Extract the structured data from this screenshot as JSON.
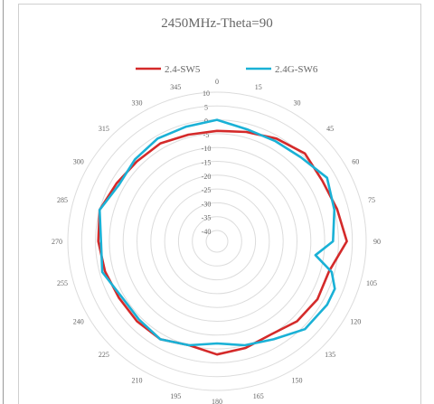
{
  "chart_data": {
    "type": "polar-line",
    "title": "2450MHz-Theta=90",
    "angle_labels": [
      "0",
      "15",
      "30",
      "45",
      "60",
      "75",
      "90",
      "105",
      "120",
      "135",
      "150",
      "165",
      "180",
      "195",
      "210",
      "225",
      "240",
      "255",
      "270",
      "285",
      "300",
      "315",
      "330",
      "345"
    ],
    "radial_range": [
      -40,
      10
    ],
    "radial_labels": [
      "10",
      "5",
      "0",
      "-5",
      "-10",
      "-15",
      "-20",
      "-25",
      "-30",
      "-35",
      "-40"
    ],
    "legend_position": "top",
    "series": [
      {
        "name": "2.4-SW5",
        "color": "#d42a2a",
        "angles": [
          0,
          15,
          30,
          45,
          60,
          75,
          90,
          105,
          120,
          135,
          150,
          165,
          180,
          195,
          210,
          225,
          240,
          255,
          270,
          285,
          300,
          315,
          330,
          345
        ],
        "values": [
          -4,
          -3,
          -1,
          1,
          0,
          1,
          3,
          -2,
          -2,
          -3,
          -5,
          -4,
          -3,
          -5,
          -3,
          -3,
          -3,
          -2,
          -1,
          0,
          -2,
          -3,
          -3,
          -4
        ]
      },
      {
        "name": "2.4G-SW6",
        "color": "#1ab1d6",
        "angles": [
          0,
          15,
          30,
          45,
          60,
          75,
          90,
          98,
          105,
          112,
          120,
          135,
          150,
          165,
          180,
          195,
          210,
          225,
          240,
          255,
          270,
          285,
          300,
          315,
          330,
          345
        ],
        "values": [
          0,
          -2,
          -2,
          -1,
          2,
          0,
          -2,
          -8,
          -1,
          2,
          2,
          1,
          -3,
          -5,
          -7,
          -5,
          -3,
          -4,
          -4,
          -1,
          -2,
          0,
          -3,
          -2,
          -1,
          -1
        ]
      }
    ]
  }
}
